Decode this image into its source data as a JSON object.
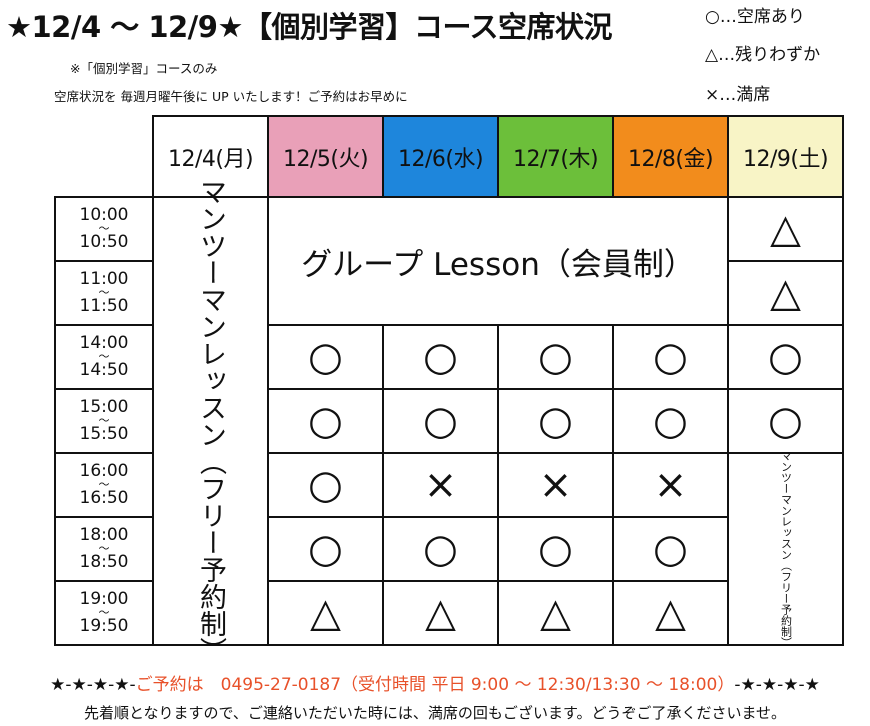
{
  "title": "★12/4 ～ 12/9★【個別学習】コース空席状況",
  "notes": [
    "※「個別学習」コースのみ",
    "空席状況を 毎週月曜午後に UP いたします！ご予約はお早めに"
  ],
  "legend": [
    "○…空席あり",
    "△…残りわずか",
    "×…満席"
  ],
  "colors": {
    "tue": "#e9a0b8",
    "wed": "#1e86dc",
    "thu": "#6cbf3a",
    "fri": "#f28c1c",
    "sat": "#f8f4c6",
    "footer_accent": "#e8512a"
  },
  "days": [
    "12/4(月)",
    "12/5(火)",
    "12/6(水)",
    "12/7(木)",
    "12/8(金)",
    "12/9(土)"
  ],
  "times": [
    {
      "start": "10:00",
      "sep": "～",
      "end": "10:50"
    },
    {
      "start": "11:00",
      "sep": "～",
      "end": "11:50"
    },
    {
      "start": "14:00",
      "sep": "～",
      "end": "14:50"
    },
    {
      "start": "15:00",
      "sep": "～",
      "end": "15:50"
    },
    {
      "start": "16:00",
      "sep": "～",
      "end": "16:50"
    },
    {
      "start": "18:00",
      "sep": "～",
      "end": "18:50"
    },
    {
      "start": "19:00",
      "sep": "～",
      "end": "19:50"
    }
  ],
  "monday_label": "マンツーマンレッスン（フリー予約制）",
  "saturday_label": "マンツーマンレッスン（フリー予約制）",
  "group_lesson": "グループ Lesson（会員制）",
  "saturday_morning": [
    "△",
    "△"
  ],
  "slots": [
    [
      "○",
      "○",
      "○",
      "○",
      "○"
    ],
    [
      "○",
      "○",
      "○",
      "○",
      "○"
    ],
    [
      "○",
      "×",
      "×",
      "×"
    ],
    [
      "○",
      "○",
      "○",
      "○"
    ],
    [
      "△",
      "△",
      "△",
      "△"
    ]
  ],
  "footer": {
    "stars_left": "★-★-★-★-",
    "reserve": "ご予約は　0495-27-0187（受付時間 平日 9:00 ～ 12:30/13:30 ～ 18:00）",
    "stars_right": "-★-★-★-★",
    "note": "先着順となりますので、ご連絡いただいた時には、満席の回もございます。どうぞご了承くださいませ。"
  }
}
